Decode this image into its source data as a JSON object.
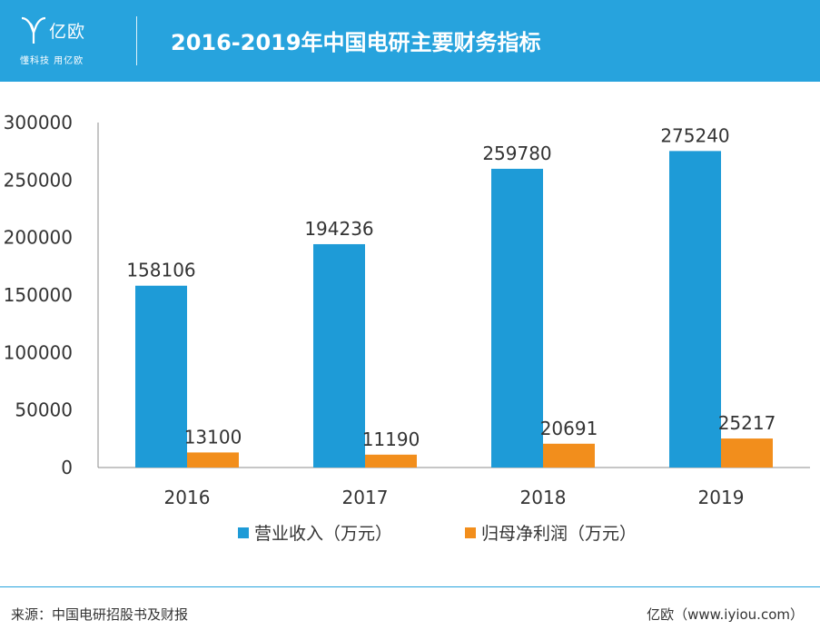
{
  "header": {
    "logo_text": "亿欧",
    "logo_slogan": "懂科技 用亿欧",
    "title": "2016-2019年中国电研主要财务指标"
  },
  "colors": {
    "header_bg": "#27a3dd",
    "series_1": "#1e9bd7",
    "series_2": "#f28e1c"
  },
  "chart_data": {
    "type": "bar",
    "title": "2016-2019年中国电研主要财务指标",
    "categories": [
      "2016",
      "2017",
      "2018",
      "2019"
    ],
    "series": [
      {
        "name": "营业收入（万元）",
        "values": [
          158106,
          194236,
          259780,
          275240
        ]
      },
      {
        "name": "归母净利润（万元）",
        "values": [
          13100,
          11190,
          20691,
          25217
        ]
      }
    ],
    "yticks": [
      "0",
      "50000",
      "100000",
      "150000",
      "200000",
      "250000",
      "300000"
    ],
    "ylim": [
      0,
      300000
    ],
    "grid": false,
    "legend": "bottom"
  },
  "footer": {
    "source": "来源：中国电研招股书及财报",
    "credit": "亿欧（www.iyiou.com）"
  }
}
